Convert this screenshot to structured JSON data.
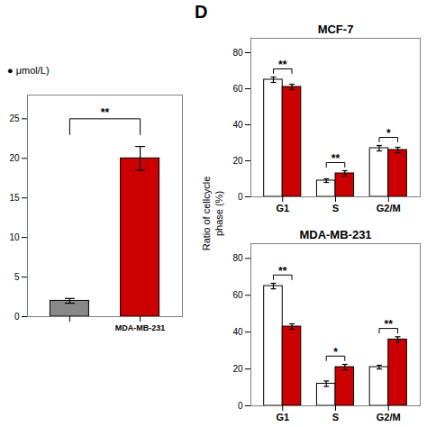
{
  "chart_data": [
    {
      "type": "bar",
      "categories": [
        null,
        "MDA-MB-231"
      ],
      "values": [
        2,
        20
      ],
      "errors": [
        0.3,
        1.5
      ],
      "colors": [
        "#888888",
        "#cc0000"
      ],
      "significance": [
        "**"
      ],
      "annotations": [
        "● μmol/L)"
      ],
      "ylim": [
        0,
        28
      ],
      "yticks": [
        0,
        5,
        10,
        15,
        20,
        25
      ],
      "grid": false
    },
    {
      "type": "bar",
      "title": "MCF-7",
      "ylabel": "Ratio of cellcycle\nphase (%)",
      "annotations": [
        "D"
      ],
      "categories": [
        "G1",
        "S",
        "G2/M"
      ],
      "series": [
        {
          "color": "#ffffff",
          "values": [
            65,
            9,
            27
          ],
          "errors": [
            1.5,
            1.0,
            1.5
          ]
        },
        {
          "color": "#cc0000",
          "values": [
            61,
            13,
            26
          ],
          "errors": [
            1.5,
            1.5,
            1.5
          ]
        }
      ],
      "significance": [
        "**",
        "**",
        "*"
      ],
      "ylim": [
        0,
        88
      ],
      "yticks": [
        0,
        20,
        40,
        60,
        80
      ],
      "grid": false
    },
    {
      "type": "bar",
      "title": "MDA-MB-231",
      "categories": [
        "G1",
        "S",
        "G2/M"
      ],
      "series": [
        {
          "color": "#ffffff",
          "values": [
            65,
            12,
            21
          ],
          "errors": [
            1.5,
            1.5,
            1.0
          ]
        },
        {
          "color": "#cc0000",
          "values": [
            43,
            21,
            36
          ],
          "errors": [
            1.5,
            1.5,
            1.5
          ]
        }
      ],
      "significance": [
        "**",
        "*",
        "**"
      ],
      "ylim": [
        0,
        88
      ],
      "yticks": [
        0,
        20,
        40,
        60,
        80
      ],
      "grid": false
    }
  ]
}
